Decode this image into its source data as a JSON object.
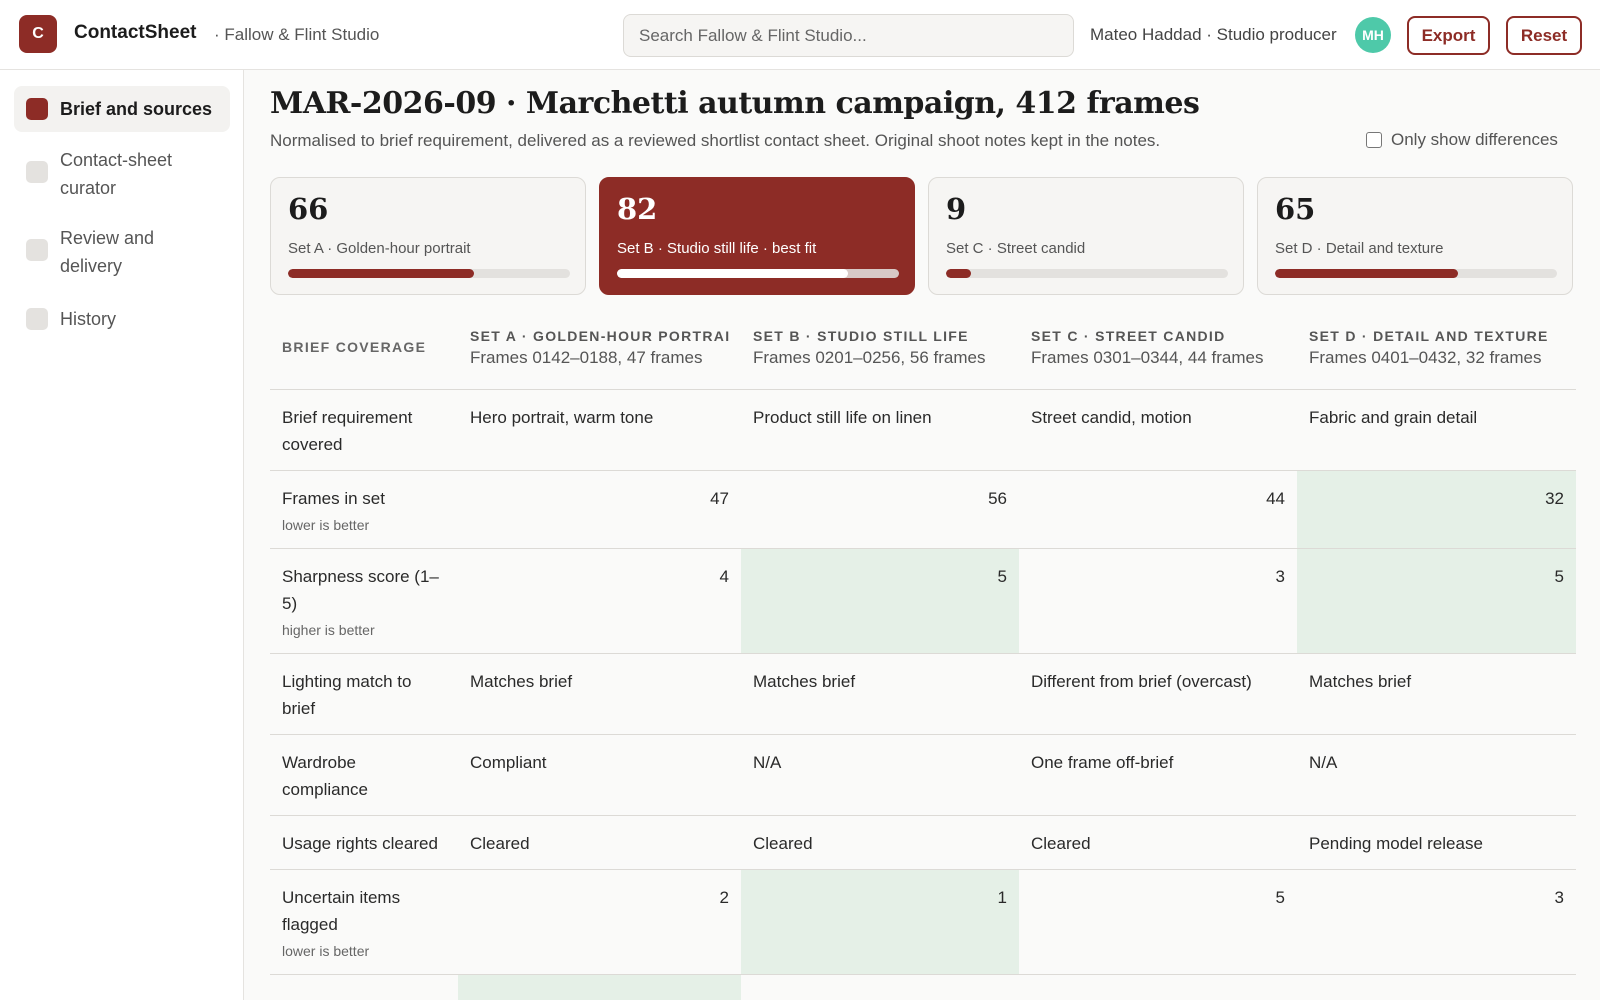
{
  "app": {
    "logo": "C",
    "name": "ContactSheet",
    "org": "· Fallow & Flint Studio"
  },
  "search": {
    "placeholder": "Search Fallow & Flint Studio..."
  },
  "user": {
    "name": "Mateo Haddad · Studio producer",
    "initials": "MH"
  },
  "actions": {
    "export": "Export",
    "reset": "Reset"
  },
  "sidebar": {
    "items": [
      {
        "label": "Brief and sources",
        "active": true
      },
      {
        "label": "Contact-sheet curator",
        "active": false
      },
      {
        "label": "Review and delivery",
        "active": false
      },
      {
        "label": "History",
        "active": false
      }
    ]
  },
  "page": {
    "title": "MAR-2026-09 · Marchetti autumn campaign, 412 frames",
    "subtitle": "Normalised to brief requirement, delivered as a reviewed shortlist contact sheet. Original shoot notes kept in the notes.",
    "diff_toggle": "Only show differences"
  },
  "cards": [
    {
      "score": "66",
      "label": "Set A · Golden-hour portrait",
      "progress": 0.66,
      "best": false
    },
    {
      "score": "82",
      "label": "Set B · Studio still life · best fit",
      "progress": 0.82,
      "best": true
    },
    {
      "score": "9",
      "label": "Set C · Street candid",
      "progress": 0.09,
      "best": false
    },
    {
      "score": "65",
      "label": "Set D · Detail and texture",
      "progress": 0.65,
      "best": false
    }
  ],
  "table": {
    "corner": "BRIEF COVERAGE",
    "columns": [
      {
        "name": "SET A · GOLDEN-HOUR PORTRAIT",
        "frames": "Frames 0142–0188, 47 frames"
      },
      {
        "name": "SET B · STUDIO STILL LIFE",
        "frames": "Frames 0201–0256, 56 frames"
      },
      {
        "name": "SET C · STREET CANDID",
        "frames": "Frames 0301–0344, 44 frames"
      },
      {
        "name": "SET D · DETAIL AND TEXTURE",
        "frames": "Frames 0401–0432, 32 frames"
      }
    ],
    "rows": [
      {
        "label": "Brief requirement covered",
        "note": "",
        "numeric": false,
        "values": [
          "Hero portrait, warm tone",
          "Product still life on linen",
          "Street candid, motion",
          "Fabric and grain detail"
        ]
      },
      {
        "label": "Frames in set",
        "note": "lower is better",
        "numeric": true,
        "values": [
          "47",
          "56",
          "44",
          "32"
        ]
      },
      {
        "label": "Sharpness score (1–5)",
        "note": "higher is better",
        "numeric": true,
        "values": [
          "4",
          "5",
          "3",
          "5"
        ]
      },
      {
        "label": "Lighting match to brief",
        "note": "",
        "numeric": false,
        "values": [
          "Matches brief",
          "Matches brief",
          "Different from brief (overcast)",
          "Matches brief"
        ]
      },
      {
        "label": "Wardrobe compliance",
        "note": "",
        "numeric": false,
        "values": [
          "Compliant",
          "N/A",
          "One frame off-brief",
          "N/A"
        ]
      },
      {
        "label": "Usage rights cleared",
        "note": "",
        "numeric": false,
        "values": [
          "Cleared",
          "Cleared",
          "Cleared",
          "Pending model release"
        ]
      },
      {
        "label": "Uncertain items flagged",
        "note": "lower is better",
        "numeric": true,
        "values": [
          "2",
          "1",
          "5",
          "3"
        ]
      }
    ]
  },
  "colors": {
    "accent": "#8d2c26",
    "best_fill": "#e5f0e7",
    "worse_text": "#b6453d",
    "avatar": "#4ec9a9"
  }
}
